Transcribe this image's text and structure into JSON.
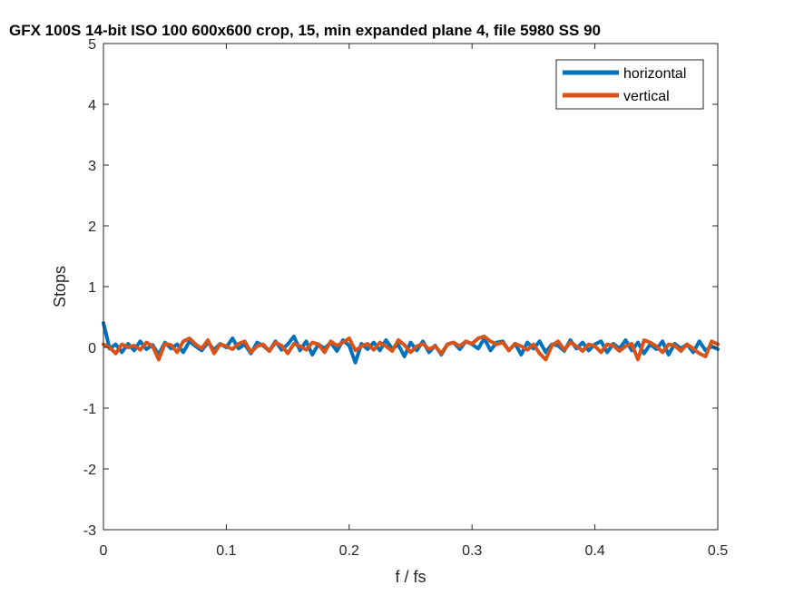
{
  "chart_data": {
    "type": "line",
    "title": "GFX 100S 14-bit ISO 100 600x600 crop, 15, min expanded plane 4, file 5980 SS 90",
    "xlabel": "f / fs",
    "ylabel": "Stops",
    "xlim": [
      0,
      0.5
    ],
    "ylim": [
      -3,
      5
    ],
    "xticks": [
      0,
      0.1,
      0.2,
      0.3,
      0.4,
      0.5
    ],
    "xtick_labels": [
      "0",
      "0.1",
      "0.2",
      "0.3",
      "0.4",
      "0.5"
    ],
    "yticks": [
      -3,
      -2,
      -1,
      0,
      1,
      2,
      3,
      4,
      5
    ],
    "ytick_labels": [
      "-3",
      "-2",
      "-1",
      "0",
      "1",
      "2",
      "3",
      "4",
      "5"
    ],
    "grid": false,
    "legend": "top-right",
    "series": [
      {
        "name": "horizontal",
        "color": "#0072BD",
        "x": [
          0,
          0.005,
          0.01,
          0.015,
          0.02,
          0.025,
          0.03,
          0.035,
          0.04,
          0.045,
          0.05,
          0.055,
          0.06,
          0.065,
          0.07,
          0.075,
          0.08,
          0.085,
          0.09,
          0.095,
          0.1,
          0.105,
          0.11,
          0.115,
          0.12,
          0.125,
          0.13,
          0.135,
          0.14,
          0.145,
          0.15,
          0.155,
          0.16,
          0.165,
          0.17,
          0.175,
          0.18,
          0.185,
          0.19,
          0.195,
          0.2,
          0.205,
          0.21,
          0.215,
          0.22,
          0.225,
          0.23,
          0.235,
          0.24,
          0.245,
          0.25,
          0.255,
          0.26,
          0.265,
          0.27,
          0.275,
          0.28,
          0.285,
          0.29,
          0.295,
          0.3,
          0.305,
          0.31,
          0.315,
          0.32,
          0.325,
          0.33,
          0.335,
          0.34,
          0.345,
          0.35,
          0.355,
          0.36,
          0.365,
          0.37,
          0.375,
          0.38,
          0.385,
          0.39,
          0.395,
          0.4,
          0.405,
          0.41,
          0.415,
          0.42,
          0.425,
          0.43,
          0.435,
          0.44,
          0.445,
          0.45,
          0.455,
          0.46,
          0.465,
          0.47,
          0.475,
          0.48,
          0.485,
          0.49,
          0.495,
          0.5
        ],
        "y": [
          0.4,
          -0.02,
          0.05,
          -0.08,
          0.06,
          -0.05,
          0.1,
          -0.03,
          0.04,
          -0.12,
          0.08,
          -0.02,
          0.05,
          -0.08,
          0.1,
          0.02,
          -0.05,
          0.08,
          -0.04,
          0.06,
          0.0,
          0.15,
          -0.02,
          0.05,
          -0.1,
          0.08,
          0.03,
          -0.06,
          0.1,
          -0.04,
          0.05,
          0.18,
          -0.05,
          0.1,
          -0.12,
          0.05,
          -0.02,
          0.08,
          -0.06,
          0.12,
          0.03,
          -0.25,
          0.06,
          -0.03,
          0.08,
          -0.05,
          0.12,
          -0.02,
          0.04,
          -0.15,
          0.08,
          -0.05,
          0.1,
          -0.08,
          0.03,
          -0.12,
          0.05,
          0.08,
          -0.03,
          0.1,
          0.05,
          -0.02,
          0.15,
          -0.05,
          0.08,
          0.1,
          -0.05,
          0.06,
          -0.12,
          0.08,
          -0.02,
          0.1,
          -0.08,
          0.05,
          0.03,
          -0.06,
          0.12,
          -0.02,
          0.08,
          -0.05,
          0.05,
          0.1,
          -0.08,
          0.06,
          -0.02,
          0.12,
          -0.05,
          0.08,
          -0.1,
          0.05,
          -0.03,
          0.1,
          -0.12,
          0.06,
          -0.02,
          0.05,
          -0.08,
          0.1,
          -0.05,
          0.02,
          -0.03
        ]
      },
      {
        "name": "vertical",
        "color": "#D95319",
        "x": [
          0,
          0.005,
          0.01,
          0.015,
          0.02,
          0.025,
          0.03,
          0.035,
          0.04,
          0.045,
          0.05,
          0.055,
          0.06,
          0.065,
          0.07,
          0.075,
          0.08,
          0.085,
          0.09,
          0.095,
          0.1,
          0.105,
          0.11,
          0.115,
          0.12,
          0.125,
          0.13,
          0.135,
          0.14,
          0.145,
          0.15,
          0.155,
          0.16,
          0.165,
          0.17,
          0.175,
          0.18,
          0.185,
          0.19,
          0.195,
          0.2,
          0.205,
          0.21,
          0.215,
          0.22,
          0.225,
          0.23,
          0.235,
          0.24,
          0.245,
          0.25,
          0.255,
          0.26,
          0.265,
          0.27,
          0.275,
          0.28,
          0.285,
          0.29,
          0.295,
          0.3,
          0.305,
          0.31,
          0.315,
          0.32,
          0.325,
          0.33,
          0.335,
          0.34,
          0.345,
          0.35,
          0.355,
          0.36,
          0.365,
          0.37,
          0.375,
          0.38,
          0.385,
          0.39,
          0.395,
          0.4,
          0.405,
          0.41,
          0.415,
          0.42,
          0.425,
          0.43,
          0.435,
          0.44,
          0.445,
          0.45,
          0.455,
          0.46,
          0.465,
          0.47,
          0.475,
          0.48,
          0.485,
          0.49,
          0.495,
          0.5
        ],
        "y": [
          0.05,
          0.0,
          -0.1,
          0.05,
          0.0,
          0.03,
          -0.04,
          0.08,
          0.02,
          -0.2,
          0.06,
          0.04,
          -0.08,
          0.1,
          0.15,
          0.05,
          -0.02,
          0.12,
          -0.1,
          0.05,
          0.02,
          -0.03,
          0.06,
          0.1,
          -0.08,
          0.02,
          0.05,
          -0.06,
          0.08,
          0.03,
          -0.1,
          0.06,
          0.02,
          -0.04,
          0.08,
          0.05,
          -0.08,
          0.1,
          0.03,
          0.08,
          0.15,
          -0.05,
          0.02,
          0.06,
          -0.04,
          0.08,
          0.02,
          -0.06,
          0.12,
          0.04,
          -0.08,
          0.02,
          0.06,
          -0.03,
          0.02,
          -0.1,
          0.05,
          0.08,
          0.02,
          0.1,
          0.06,
          0.15,
          0.18,
          0.1,
          0.05,
          0.08,
          -0.05,
          0.06,
          0.02,
          -0.04,
          0.05,
          -0.1,
          -0.2,
          0.03,
          0.1,
          -0.04,
          0.08,
          0.02,
          -0.06,
          0.05,
          0.02,
          -0.08,
          0.05,
          0.03,
          -0.06,
          0.02,
          0.06,
          -0.2,
          0.12,
          0.08,
          0.02,
          -0.08,
          0.05,
          0.03,
          -0.06,
          0.05,
          -0.02,
          -0.1,
          -0.15,
          0.1,
          0.05
        ]
      }
    ]
  }
}
